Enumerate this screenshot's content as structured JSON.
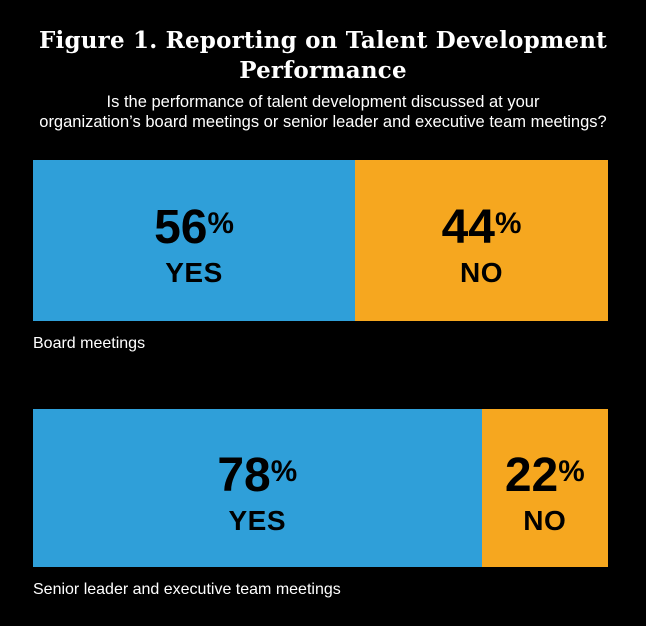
{
  "figure": {
    "title": "Figure 1. Reporting on Talent Development Performance",
    "subtitle_lines": [
      "Is the performance of talent development discussed at your",
      "organization’s board meetings or senior leader and executive team meetings?"
    ]
  },
  "colors": {
    "background": "#000000",
    "yes_segment": "#2F9FD9",
    "no_segment": "#F6A71F",
    "bar_text": "#000000",
    "page_text": "#FFFFFF"
  },
  "chart_data": {
    "type": "bar",
    "subtype": "horizontal-stacked-100percent",
    "title": "Figure 1. Reporting on Talent Development Performance",
    "question": "Is the performance of talent development discussed at your organization’s board meetings or senior leader and executive team meetings?",
    "categories": [
      "Board meetings",
      "Senior leader and executive team meetings"
    ],
    "series": [
      {
        "name": "YES",
        "color": "#2F9FD9",
        "values": [
          56,
          78
        ]
      },
      {
        "name": "NO",
        "color": "#F6A71F",
        "values": [
          44,
          22
        ]
      }
    ],
    "value_format": "percent",
    "xlim": [
      0,
      100
    ],
    "grid": false,
    "legend_position": "in-bar-labels"
  },
  "bars": [
    {
      "category_label": "Board meetings",
      "yes": {
        "value": 56,
        "display": "56",
        "suffix": "%",
        "answer": "YES"
      },
      "no": {
        "value": 44,
        "display": "44",
        "suffix": "%",
        "answer": "NO"
      }
    },
    {
      "category_label": "Senior leader and executive team meetings",
      "yes": {
        "value": 78,
        "display": "78",
        "suffix": "%",
        "answer": "YES"
      },
      "no": {
        "value": 22,
        "display": "22",
        "suffix": "%",
        "answer": "NO"
      }
    }
  ]
}
